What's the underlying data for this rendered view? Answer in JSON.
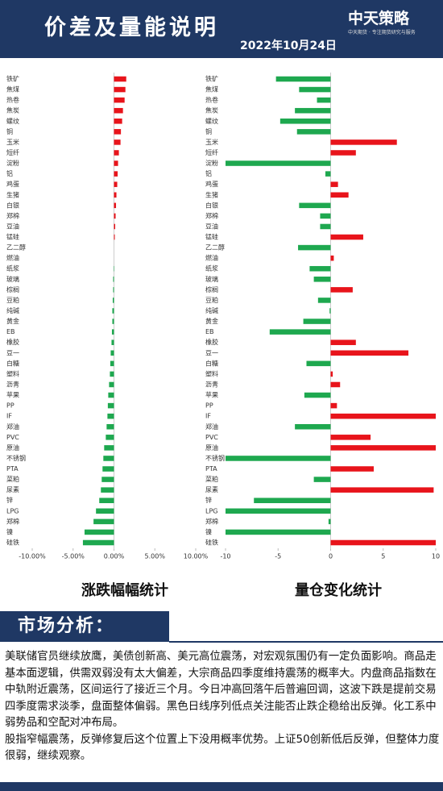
{
  "header": {
    "title": "价差及量能说明",
    "date": "2022年10月24日",
    "logo": "中天策略",
    "logo_sub": "中天期货 · 专注期货研究与服务"
  },
  "chart_data": [
    {
      "type": "bar",
      "title": "涨跌幅幅统计",
      "categories": [
        "铁矿",
        "焦煤",
        "热卷",
        "焦炭",
        "螺纹",
        "铜",
        "玉米",
        "短纤",
        "淀粉",
        "铝",
        "鸡蛋",
        "生猪",
        "白银",
        "郑棉",
        "豆油",
        "锰硅",
        "乙二醇",
        "燃油",
        "纸浆",
        "玻璃",
        "棕榈",
        "豆粕",
        "纯碱",
        "黄金",
        "EB",
        "橡胶",
        "豆一",
        "白糖",
        "塑料",
        "沥青",
        "苹果",
        "PP",
        "IF",
        "郑油",
        "PVC",
        "原油",
        "不锈钢",
        "PTA",
        "菜粕",
        "尿素",
        "锌",
        "LPG",
        "郑棉",
        "镍",
        "硅铁"
      ],
      "values": [
        1.5,
        1.4,
        1.3,
        1.1,
        1.0,
        0.85,
        0.8,
        0.6,
        0.5,
        0.45,
        0.4,
        0.3,
        0.25,
        0.2,
        0.15,
        0.1,
        0,
        0,
        -0.05,
        -0.1,
        -0.1,
        -0.15,
        -0.2,
        -0.2,
        -0.25,
        -0.3,
        -0.4,
        -0.45,
        -0.5,
        -0.6,
        -0.7,
        -0.75,
        -0.8,
        -0.9,
        -1.0,
        -1.2,
        -1.3,
        -1.4,
        -1.5,
        -1.6,
        -1.8,
        -2.2,
        -2.5,
        -3.6,
        -3.8
      ],
      "up_color": "#e8141b",
      "down_color": "#1ea84f",
      "xlim": [
        -10,
        10
      ],
      "xticks": [
        {
          "value": -10,
          "label": "-10.00%"
        },
        {
          "value": -5,
          "label": "-5.00%"
        },
        {
          "value": 0,
          "label": "0.00%"
        },
        {
          "value": 5,
          "label": "5.00%"
        },
        {
          "value": 10,
          "label": "10.00%"
        }
      ]
    },
    {
      "type": "bar",
      "title": "量仓变化统计",
      "categories": [
        "铁矿",
        "焦煤",
        "热卷",
        "焦炭",
        "螺纹",
        "铜",
        "玉米",
        "短纤",
        "淀粉",
        "铝",
        "鸡蛋",
        "生猪",
        "白银",
        "郑棉",
        "豆油",
        "锰硅",
        "乙二醇",
        "燃油",
        "纸浆",
        "玻璃",
        "棕榈",
        "豆粕",
        "纯碱",
        "黄金",
        "EB",
        "橡胶",
        "豆一",
        "白糖",
        "塑料",
        "沥青",
        "苹果",
        "PP",
        "IF",
        "郑油",
        "PVC",
        "原油",
        "不锈钢",
        "PTA",
        "菜粕",
        "尿素",
        "锌",
        "LPG",
        "郑棉",
        "镍",
        "硅铁"
      ],
      "values": [
        -5.2,
        -3.0,
        -1.3,
        -3.4,
        -4.8,
        -3.2,
        6.3,
        2.4,
        -10,
        -0.5,
        0.7,
        1.7,
        -3.0,
        -1.0,
        -1.0,
        3.1,
        -3.1,
        0.3,
        -2.0,
        -1.6,
        2.1,
        -1.2,
        -0.1,
        -2.6,
        -5.8,
        2.4,
        7.4,
        -2.3,
        0.2,
        0.9,
        -2.5,
        0.6,
        10,
        -3.4,
        3.8,
        10,
        -10,
        4.1,
        -1.6,
        9.8,
        -7.3,
        -10,
        -0.2,
        -10,
        10
      ],
      "up_color": "#e8141b",
      "down_color": "#1ea84f",
      "xlim": [
        -10,
        10
      ],
      "xticks": [
        -10,
        -5,
        0,
        5,
        10
      ]
    }
  ],
  "analysis": {
    "title": "市场分析：",
    "paragraphs": [
      "美联储官员继续放鹰，美债创新高、美元高位震荡，对宏观氛围仍有一定负面影响。商品走基本面逻辑，供需双弱没有太大偏差，大宗商品四季度维持震荡的概率大。内盘商品指数在中轨附近震荡，区间运行了接近三个月。今日冲高回落午后普遍回调，这波下跌是提前交易四季度需求淡季，盘面整体偏弱。黑色日线序列低点关注能否止跌企稳给出反弹。化工系中弱势品和空配对冲布局。",
      "股指窄幅震荡，反弹修复后这个位置上下没用概率优势。上证50创新低后反弹，但整体力度很弱，继续观察。"
    ]
  }
}
